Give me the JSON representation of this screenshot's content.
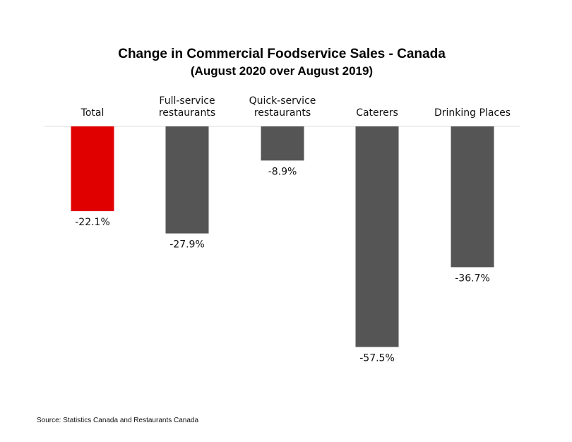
{
  "chart_data": {
    "type": "bar",
    "title": "Change in Commercial Foodservice Sales - Canada",
    "subtitle": "(August 2020 over August 2019)",
    "categories": [
      [
        "Total"
      ],
      [
        "Full-service",
        "restaurants"
      ],
      [
        "Quick-service",
        "restaurants"
      ],
      [
        "Caterers"
      ],
      [
        "Drinking Places"
      ]
    ],
    "values": [
      -22.1,
      -27.9,
      -8.9,
      -57.5,
      -36.7
    ],
    "value_labels": [
      "-22.1%",
      "-27.9%",
      "-8.9%",
      "-57.5%",
      "-36.7%"
    ],
    "ylim": [
      -60,
      0
    ],
    "colors": [
      "#e00000",
      "#555555",
      "#555555",
      "#555555",
      "#555555"
    ],
    "grid": false,
    "axis_line_color": "#dddddd"
  },
  "footer": {
    "source": "Source: Statistics Canada and Restaurants Canada"
  }
}
